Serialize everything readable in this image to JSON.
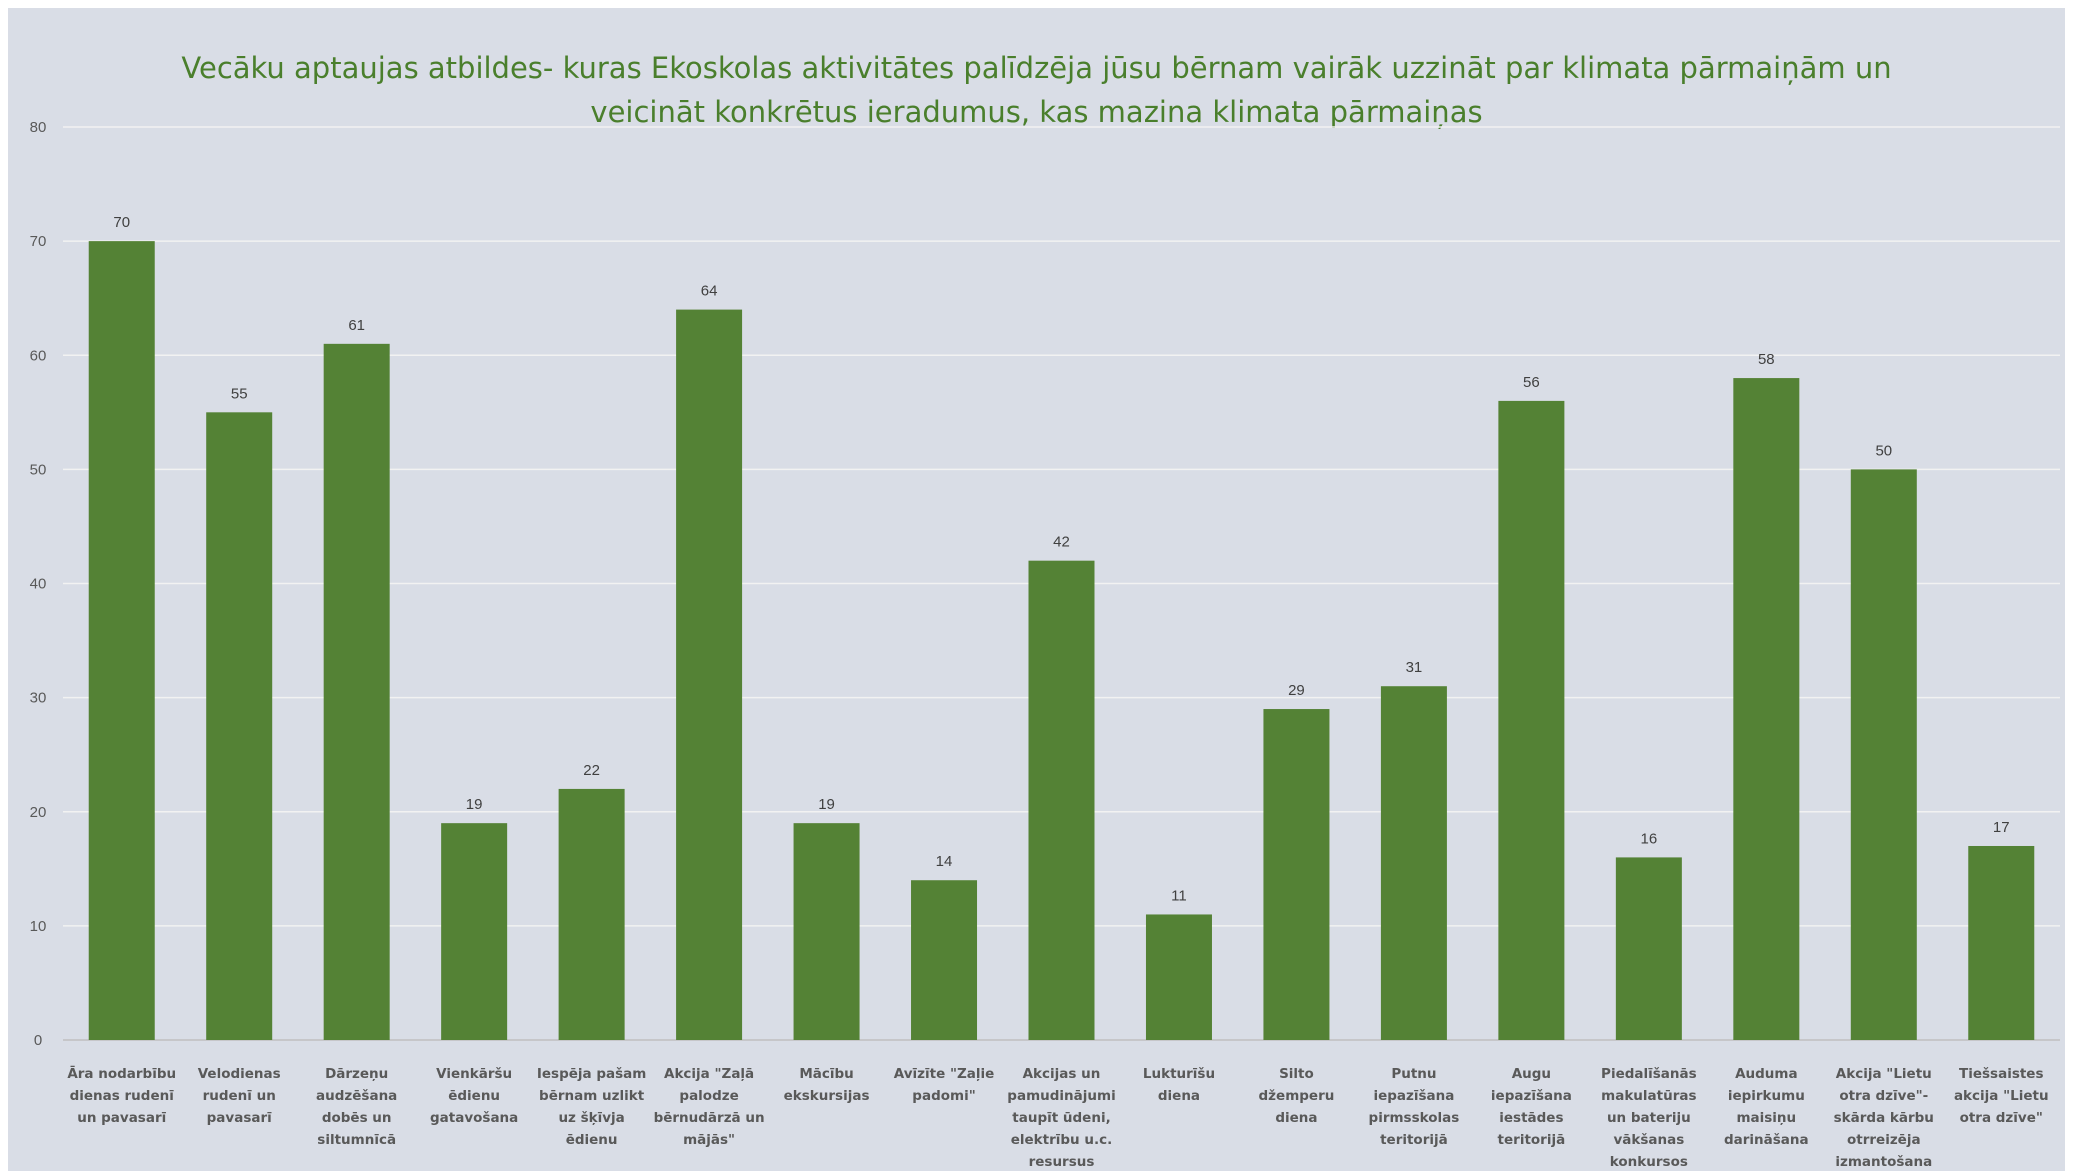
{
  "chart_data": {
    "type": "bar",
    "title_lines": [
      "Vecāku aptaujas atbildes- kuras Ekoskolas aktivitātes palīdzēja jūsu bērnam vairāk uzzināt par klimata pārmaiņām un",
      "veicināt konkrētus ieradumus, kas mazina klimata pārmaiņas"
    ],
    "xlabel": "",
    "ylabel": "",
    "ylim": [
      0,
      80
    ],
    "yticks": [
      0,
      10,
      20,
      30,
      40,
      50,
      60,
      70,
      80
    ],
    "grid": true,
    "legend": "none",
    "bar_color": "#548235",
    "categories": [
      [
        "Āra nodarbību",
        "dienas rudenī",
        "un pavasarī"
      ],
      [
        "Velodienas",
        "rudenī un",
        "pavasarī"
      ],
      [
        "Dārzeņu",
        "audzēšana",
        "dobēs un",
        "siltumnīcā"
      ],
      [
        "Vienkāršu",
        "ēdienu",
        "gatavošana"
      ],
      [
        "Iespēja pašam",
        "bērnam uzlikt",
        "uz šķīvja",
        "ēdienu"
      ],
      [
        "Akcija \"Zaļā",
        "palodze",
        "bērnudārzā un",
        "mājās\""
      ],
      [
        "Mācību",
        "ekskursijas"
      ],
      [
        "Avīzīte \"Zaļie",
        "padomi\""
      ],
      [
        "Akcijas un",
        "pamudinājumi",
        "taupīt ūdeni,",
        "elektrību u.c.",
        "resursus"
      ],
      [
        "Lukturīšu",
        "diena"
      ],
      [
        "Silto",
        "džemperu",
        "diena"
      ],
      [
        "Putnu",
        "iepazīšana",
        "pirmsskolas",
        "teritorijā"
      ],
      [
        "Augu",
        "iepazīšana",
        "iestādes",
        "teritorijā"
      ],
      [
        "Piedalīšanās",
        "makulatūras",
        "un bateriju",
        "vākšanas",
        "konkursos"
      ],
      [
        "Auduma",
        "iepirkumu",
        "maisiņu",
        "darināšana"
      ],
      [
        "Akcija \"Lietu",
        "otra dzīve\"-",
        "skārda kārbu",
        "otrreizēja",
        "izmantošana"
      ],
      [
        "Tiešsaistes",
        "akcija \"Lietu",
        "otra dzīve\""
      ]
    ],
    "values": [
      70,
      55,
      61,
      19,
      22,
      64,
      19,
      14,
      42,
      11,
      29,
      31,
      56,
      16,
      58,
      50,
      17
    ]
  }
}
